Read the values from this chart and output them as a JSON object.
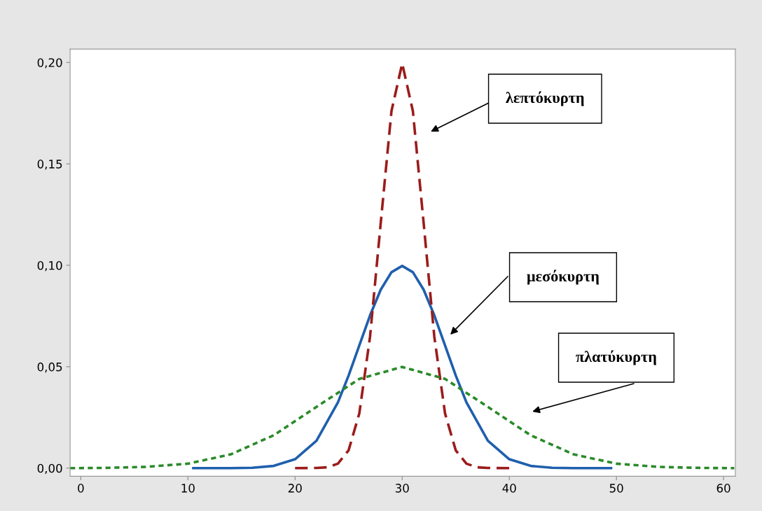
{
  "chart_data": {
    "type": "line",
    "xlim": [
      -1,
      61.1
    ],
    "ylim": [
      -0.004,
      0.2066
    ],
    "xticks": [
      0,
      10,
      20,
      30,
      40,
      50,
      60
    ],
    "yticks": [
      {
        "value": 0,
        "label": "0,00"
      },
      {
        "value": 0.05,
        "label": "0,05"
      },
      {
        "value": 0.1,
        "label": "0,10"
      },
      {
        "value": 0.15,
        "label": "0,15"
      },
      {
        "value": 0.2,
        "label": "0,20"
      }
    ],
    "grid": false,
    "legend": false,
    "series": [
      {
        "color": "#1f5fad",
        "line_style": "solid",
        "x": [
          10.5,
          14,
          16,
          18,
          20,
          22,
          24,
          25,
          26,
          27,
          28,
          29,
          30,
          31,
          32,
          33,
          34,
          35,
          36,
          38,
          40,
          42,
          44,
          46,
          49.5
        ],
        "values": [
          0,
          0,
          0.0002,
          0.0011,
          0.0044,
          0.0135,
          0.0324,
          0.0457,
          0.0605,
          0.0753,
          0.088,
          0.0966,
          0.0997,
          0.0966,
          0.088,
          0.0753,
          0.0605,
          0.0457,
          0.0324,
          0.0135,
          0.0044,
          0.0011,
          0.0002,
          0,
          0
        ]
      },
      {
        "color": "#9b1c1c",
        "line_style": "dashed",
        "x": [
          20,
          22,
          23,
          24,
          25,
          26,
          27,
          28,
          29,
          30,
          31,
          32,
          33,
          34,
          35,
          36,
          37,
          38,
          40
        ],
        "values": [
          0,
          0.0001,
          0.0004,
          0.0022,
          0.0088,
          0.027,
          0.0648,
          0.121,
          0.176,
          0.1995,
          0.176,
          0.121,
          0.0648,
          0.027,
          0.0088,
          0.0022,
          0.0004,
          0.0001,
          0
        ]
      },
      {
        "color": "#2a8a2a",
        "line_style": "dotted",
        "x": [
          -1,
          2,
          6,
          10,
          14,
          18,
          22,
          26,
          30,
          34,
          38,
          42,
          46,
          50,
          54,
          58,
          61
        ],
        "values": [
          0,
          0.0001,
          0.0006,
          0.0022,
          0.0068,
          0.0162,
          0.0302,
          0.044,
          0.0499,
          0.044,
          0.0302,
          0.0162,
          0.0068,
          0.0022,
          0.0006,
          0.0001,
          0
        ]
      }
    ],
    "annotations": [
      "λεπτόκυρτη",
      "μεσόκυρτη",
      "πλατύκυρτη"
    ]
  }
}
